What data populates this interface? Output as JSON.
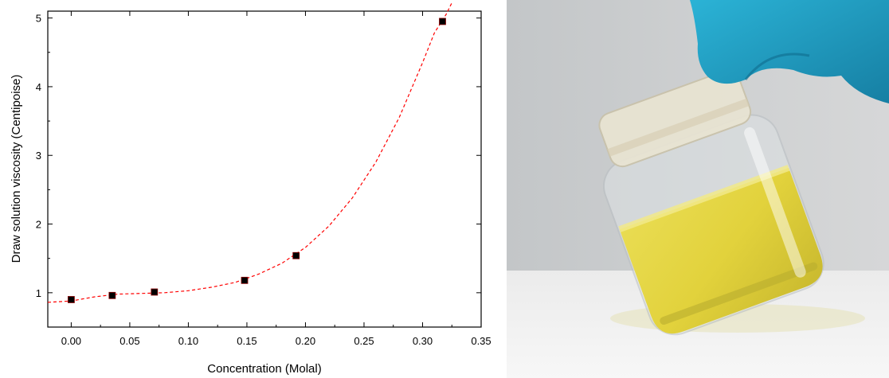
{
  "chart_data": {
    "type": "scatter",
    "xlabel": "Concentration (Molal)",
    "ylabel": "Draw solution viscosity (Centipoise)",
    "xlim": [
      -0.02,
      0.35
    ],
    "ylim": [
      0.5,
      5.1
    ],
    "x_ticks": [
      0.0,
      0.05,
      0.1,
      0.15,
      0.2,
      0.25,
      0.3,
      0.35
    ],
    "x_tick_labels": [
      "0.00",
      "0.05",
      "0.10",
      "0.15",
      "0.20",
      "0.25",
      "0.30",
      "0.35"
    ],
    "y_ticks": [
      1,
      2,
      3,
      4,
      5
    ],
    "y_tick_labels": [
      "1",
      "2",
      "3",
      "4",
      "5"
    ],
    "grid": false,
    "series": [
      {
        "marker": "square",
        "color": "#000000",
        "x": [
          0.0,
          0.035,
          0.071,
          0.148,
          0.192,
          0.317
        ],
        "y": [
          0.9,
          0.96,
          1.01,
          1.18,
          1.54,
          4.95
        ]
      }
    ],
    "fit": {
      "style": "dashed",
      "color": "#ff0000",
      "x": [
        -0.02,
        0.0,
        0.02,
        0.04,
        0.06,
        0.08,
        0.1,
        0.12,
        0.14,
        0.16,
        0.18,
        0.2,
        0.22,
        0.24,
        0.26,
        0.28,
        0.3,
        0.31,
        0.32,
        0.325
      ],
      "y": [
        0.86,
        0.88,
        0.94,
        0.98,
        0.99,
        1.0,
        1.03,
        1.08,
        1.15,
        1.27,
        1.43,
        1.66,
        1.97,
        2.38,
        2.9,
        3.55,
        4.35,
        4.78,
        5.05,
        5.22
      ]
    }
  },
  "photo": {
    "subject": "glass-jar-with-yellow-draw-solution",
    "colors": {
      "background_wall": "#c9cbcc",
      "table": "#f4f4f4",
      "glove": "#1fa2c6",
      "liquid": "#e6db45",
      "glass": "#e8ecee"
    }
  }
}
